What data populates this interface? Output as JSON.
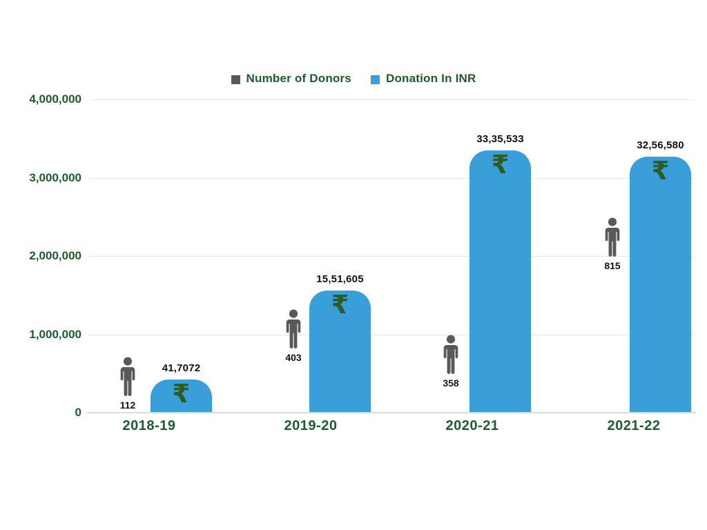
{
  "chart": {
    "legend": [
      {
        "label": "Number of Donors",
        "color": "#595959"
      },
      {
        "label": "Donation In INR",
        "color": "#3a9ed9"
      }
    ],
    "y_axis": {
      "ticks": [
        "4,000,000",
        "3,000,000",
        "2,000,000",
        "1,000,000",
        "0"
      ],
      "max": 4000000
    },
    "rupee_symbol": "₹",
    "groups": [
      {
        "year": "2018-19",
        "donors": "112",
        "donation_label": "41,7072",
        "donation_value": 417072
      },
      {
        "year": "2019-20",
        "donors": "403",
        "donation_label": "15,51,605",
        "donation_value": 1551605
      },
      {
        "year": "2020-21",
        "donors": "358",
        "donation_label": "33,35,533",
        "donation_value": 3335533
      },
      {
        "year": "2021-22",
        "donors": "815",
        "donation_label": "32,56,580",
        "donation_value": 3256580
      }
    ]
  },
  "chart_data": {
    "type": "bar",
    "categories": [
      "2018-19",
      "2019-20",
      "2020-21",
      "2021-22"
    ],
    "series": [
      {
        "name": "Number of Donors",
        "values": [
          112,
          403,
          358,
          815
        ]
      },
      {
        "name": "Donation In INR",
        "values": [
          417072,
          1551605,
          3335533,
          3256580
        ]
      }
    ],
    "value_labels": {
      "donation": [
        "41,7072",
        "15,51,605",
        "33,35,533",
        "32,56,580"
      ],
      "donors": [
        "112",
        "403",
        "358",
        "815"
      ]
    },
    "title": "",
    "xlabel": "",
    "ylabel": "",
    "ylim": [
      0,
      4000000
    ],
    "y_ticks": [
      0,
      1000000,
      2000000,
      3000000,
      4000000
    ],
    "grid": true,
    "legend_position": "top",
    "colors": {
      "bar": "#3a9ed9",
      "person": "#595959",
      "axis_text": "#1e5b2d",
      "rupee": "#2d5c22"
    }
  }
}
